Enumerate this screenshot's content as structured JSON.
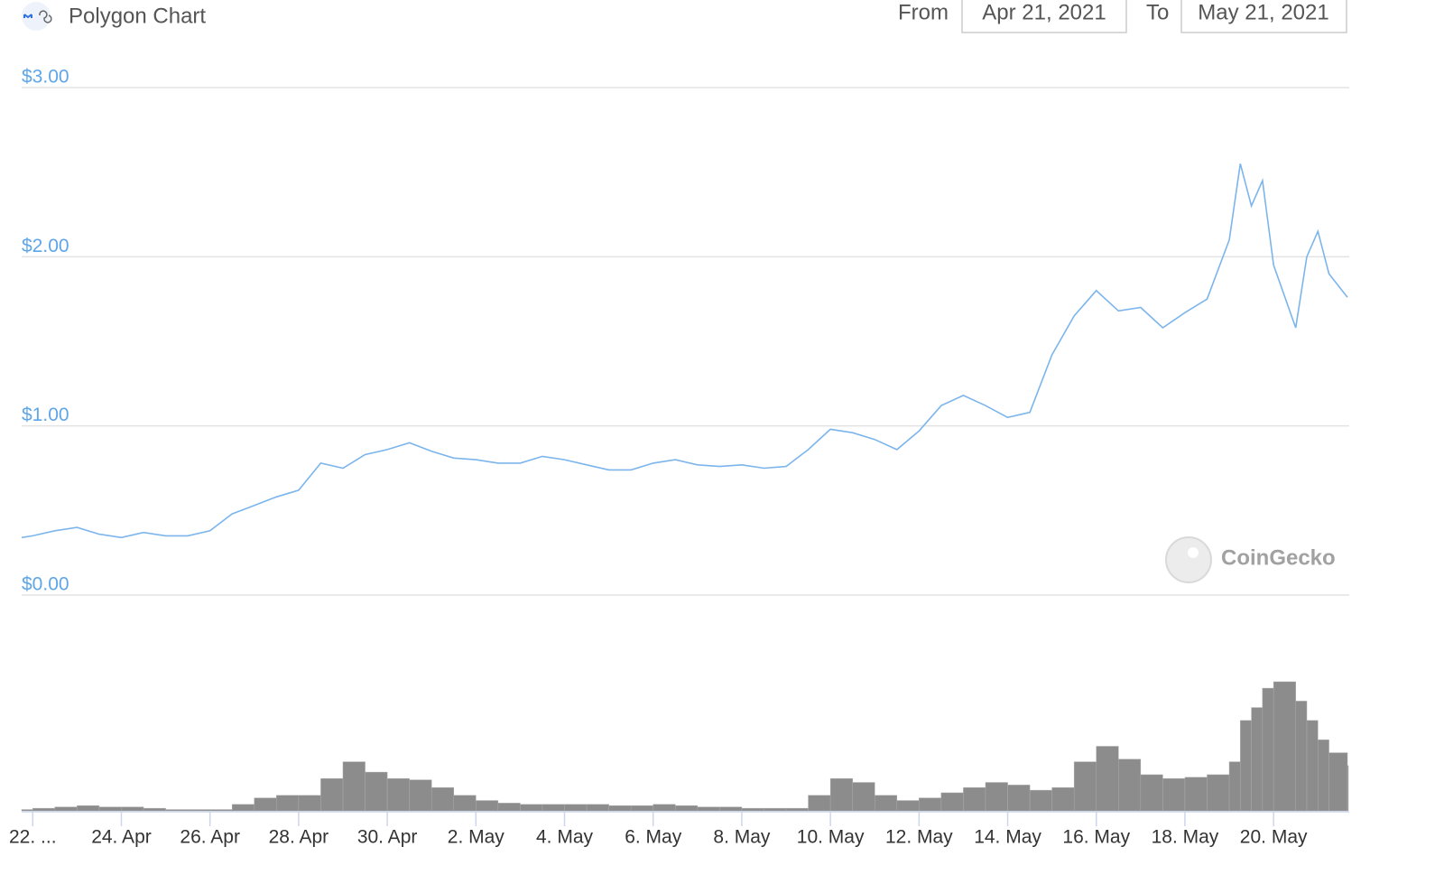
{
  "header": {
    "title": "Polygon Chart",
    "from_label": "From",
    "from_date": "Apr 21, 2021",
    "to_label": "To",
    "to_date": "May 21, 2021"
  },
  "watermark": "CoinGecko",
  "chart_data": [
    {
      "type": "line",
      "color": "#7cb5ec",
      "grid": true,
      "x": [
        "2021-04-21T18:00",
        "2021-04-22T00:00",
        "2021-04-22T12:00",
        "2021-04-23T00:00",
        "2021-04-23T12:00",
        "2021-04-24T00:00",
        "2021-04-24T12:00",
        "2021-04-25T00:00",
        "2021-04-25T12:00",
        "2021-04-26T00:00",
        "2021-04-26T12:00",
        "2021-04-27T00:00",
        "2021-04-27T12:00",
        "2021-04-28T00:00",
        "2021-04-28T12:00",
        "2021-04-29T00:00",
        "2021-04-29T12:00",
        "2021-04-30T00:00",
        "2021-04-30T12:00",
        "2021-05-01T00:00",
        "2021-05-01T12:00",
        "2021-05-02T00:00",
        "2021-05-02T12:00",
        "2021-05-03T00:00",
        "2021-05-03T12:00",
        "2021-05-04T00:00",
        "2021-05-04T12:00",
        "2021-05-05T00:00",
        "2021-05-05T12:00",
        "2021-05-06T00:00",
        "2021-05-06T12:00",
        "2021-05-07T00:00",
        "2021-05-07T12:00",
        "2021-05-08T00:00",
        "2021-05-08T12:00",
        "2021-05-09T00:00",
        "2021-05-09T12:00",
        "2021-05-10T00:00",
        "2021-05-10T12:00",
        "2021-05-11T00:00",
        "2021-05-11T12:00",
        "2021-05-12T00:00",
        "2021-05-12T12:00",
        "2021-05-13T00:00",
        "2021-05-13T12:00",
        "2021-05-14T00:00",
        "2021-05-14T12:00",
        "2021-05-15T00:00",
        "2021-05-15T12:00",
        "2021-05-16T00:00",
        "2021-05-16T12:00",
        "2021-05-17T00:00",
        "2021-05-17T12:00",
        "2021-05-18T00:00",
        "2021-05-18T12:00",
        "2021-05-19T00:00",
        "2021-05-19T06:00",
        "2021-05-19T12:00",
        "2021-05-19T18:00",
        "2021-05-20T00:00",
        "2021-05-20T12:00",
        "2021-05-20T18:00",
        "2021-05-21T00:00",
        "2021-05-21T06:00",
        "2021-05-21T16:00"
      ],
      "values": [
        0.34,
        0.35,
        0.38,
        0.4,
        0.36,
        0.34,
        0.37,
        0.35,
        0.35,
        0.38,
        0.48,
        0.53,
        0.58,
        0.62,
        0.78,
        0.75,
        0.83,
        0.86,
        0.9,
        0.85,
        0.81,
        0.8,
        0.78,
        0.78,
        0.82,
        0.8,
        0.77,
        0.74,
        0.74,
        0.78,
        0.8,
        0.77,
        0.76,
        0.77,
        0.75,
        0.76,
        0.86,
        0.98,
        0.96,
        0.92,
        0.86,
        0.97,
        1.12,
        1.18,
        1.12,
        1.05,
        1.08,
        1.42,
        1.65,
        1.8,
        1.68,
        1.7,
        1.58,
        1.67,
        1.75,
        2.1,
        2.55,
        2.3,
        2.45,
        1.95,
        1.58,
        2.0,
        2.15,
        1.9,
        1.76
      ],
      "xlim": [
        "2021-04-21T18:00",
        "2021-05-21T16:00"
      ],
      "ylim": [
        0,
        3
      ],
      "yticks": [
        {
          "value": 0,
          "label": "$0.00"
        },
        {
          "value": 1,
          "label": "$1.00"
        },
        {
          "value": 2,
          "label": "$2.00"
        },
        {
          "value": 3,
          "label": "$3.00"
        }
      ]
    },
    {
      "type": "bar",
      "color": "#8c8c8c",
      "x": [
        "2021-04-21T18:00",
        "2021-04-22T00:00",
        "2021-04-22T12:00",
        "2021-04-23T00:00",
        "2021-04-23T12:00",
        "2021-04-24T00:00",
        "2021-04-24T12:00",
        "2021-04-25T00:00",
        "2021-04-25T12:00",
        "2021-04-26T00:00",
        "2021-04-26T12:00",
        "2021-04-27T00:00",
        "2021-04-27T12:00",
        "2021-04-28T00:00",
        "2021-04-28T12:00",
        "2021-04-29T00:00",
        "2021-04-29T12:00",
        "2021-04-30T00:00",
        "2021-04-30T12:00",
        "2021-05-01T00:00",
        "2021-05-01T12:00",
        "2021-05-02T00:00",
        "2021-05-02T12:00",
        "2021-05-03T00:00",
        "2021-05-03T12:00",
        "2021-05-04T00:00",
        "2021-05-04T12:00",
        "2021-05-05T00:00",
        "2021-05-05T12:00",
        "2021-05-06T00:00",
        "2021-05-06T12:00",
        "2021-05-07T00:00",
        "2021-05-07T12:00",
        "2021-05-08T00:00",
        "2021-05-08T12:00",
        "2021-05-09T00:00",
        "2021-05-09T12:00",
        "2021-05-10T00:00",
        "2021-05-10T12:00",
        "2021-05-11T00:00",
        "2021-05-11T12:00",
        "2021-05-12T00:00",
        "2021-05-12T12:00",
        "2021-05-13T00:00",
        "2021-05-13T12:00",
        "2021-05-14T00:00",
        "2021-05-14T12:00",
        "2021-05-15T00:00",
        "2021-05-15T12:00",
        "2021-05-16T00:00",
        "2021-05-16T12:00",
        "2021-05-17T00:00",
        "2021-05-17T12:00",
        "2021-05-18T00:00",
        "2021-05-18T12:00",
        "2021-05-19T00:00",
        "2021-05-19T06:00",
        "2021-05-19T12:00",
        "2021-05-19T18:00",
        "2021-05-20T00:00",
        "2021-05-20T12:00",
        "2021-05-20T18:00",
        "2021-05-21T00:00",
        "2021-05-21T06:00",
        "2021-05-21T16:00"
      ],
      "values": [
        1,
        2,
        3,
        4,
        3,
        3,
        2,
        1,
        1,
        1,
        5,
        10,
        12,
        12,
        25,
        38,
        30,
        25,
        24,
        18,
        12,
        8,
        6,
        5,
        5,
        5,
        5,
        4,
        4,
        5,
        4,
        3,
        3,
        2,
        2,
        2,
        12,
        25,
        22,
        12,
        8,
        10,
        14,
        18,
        22,
        20,
        16,
        18,
        38,
        50,
        40,
        28,
        25,
        26,
        28,
        38,
        70,
        80,
        95,
        100,
        85,
        70,
        55,
        45,
        35
      ],
      "xlim": [
        "2021-04-21T18:00",
        "2021-05-21T16:00"
      ],
      "ylim": [
        0,
        100
      ],
      "xticks": [
        {
          "value": "2021-04-22T00:00",
          "label": "22. ..."
        },
        {
          "value": "2021-04-24T00:00",
          "label": "24. Apr"
        },
        {
          "value": "2021-04-26T00:00",
          "label": "26. Apr"
        },
        {
          "value": "2021-04-28T00:00",
          "label": "28. Apr"
        },
        {
          "value": "2021-04-30T00:00",
          "label": "30. Apr"
        },
        {
          "value": "2021-05-02T00:00",
          "label": "2. May"
        },
        {
          "value": "2021-05-04T00:00",
          "label": "4. May"
        },
        {
          "value": "2021-05-06T00:00",
          "label": "6. May"
        },
        {
          "value": "2021-05-08T00:00",
          "label": "8. May"
        },
        {
          "value": "2021-05-10T00:00",
          "label": "10. May"
        },
        {
          "value": "2021-05-12T00:00",
          "label": "12. May"
        },
        {
          "value": "2021-05-14T00:00",
          "label": "14. May"
        },
        {
          "value": "2021-05-16T00:00",
          "label": "16. May"
        },
        {
          "value": "2021-05-18T00:00",
          "label": "18. May"
        },
        {
          "value": "2021-05-20T00:00",
          "label": "20. May"
        }
      ]
    }
  ]
}
